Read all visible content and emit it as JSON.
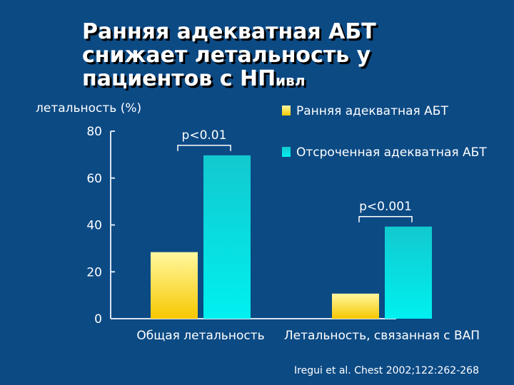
{
  "slide": {
    "title_main": "Ранняя адекватная АБТ снижает летальность у пациентов с НП",
    "title_sub": "ивл",
    "citation": "Iregui et al. Chest 2002;122:262-268"
  },
  "colors": {
    "background": "#0c4a84",
    "series_early_top": "#fff8a0",
    "series_early_bottom": "#f7c800",
    "series_delayed_top": "#12c9cf",
    "series_delayed_bottom": "#00f0f0"
  },
  "chart_data": {
    "type": "bar",
    "ylabel": "летальность (%)",
    "ylim": [
      0,
      80
    ],
    "yticks": [
      0,
      20,
      40,
      60,
      80
    ],
    "categories": [
      "Общая летальность",
      "Летальность, связанная с ВАП"
    ],
    "series": [
      {
        "name": "Ранняя адекватная АБТ",
        "values": [
          28.4,
          10.7
        ]
      },
      {
        "name": "Отсроченная адекватная АБТ",
        "values": [
          69.7,
          39.3
        ]
      }
    ],
    "annotations": [
      "p<0.01",
      "p<0.001"
    ],
    "legend": "top-right",
    "grid": false
  }
}
